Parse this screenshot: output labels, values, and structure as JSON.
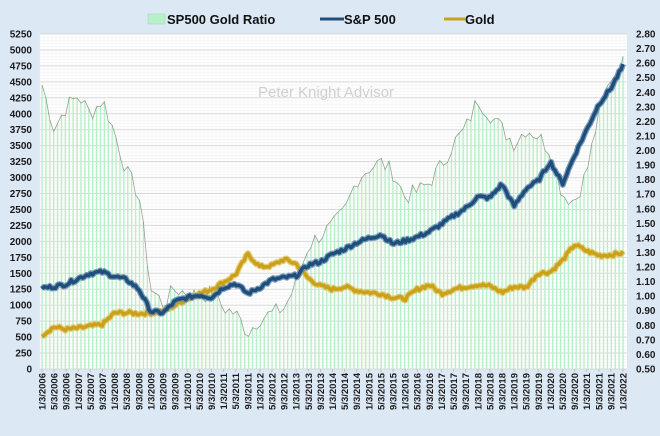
{
  "chart_data": {
    "type": "line",
    "title": "",
    "watermark": "Peter Knight Advisor",
    "legend": {
      "placement": "top",
      "entries": [
        {
          "name": "SP500 Gold Ratio",
          "symbol": "column"
        },
        {
          "name": "S&P 500",
          "symbol": "line"
        },
        {
          "name": "Gold",
          "symbol": "line"
        }
      ]
    },
    "colors": {
      "background": "#dde8f5",
      "plot_background": "#ffffff",
      "ratio_fill": "#b8f0c8",
      "ratio_line": "#6b7f6b",
      "sp500": "#1f4e79",
      "sp500_glow": "#5b84b1",
      "gold": "#c9a21a",
      "gold_glow": "#e2c25a",
      "grid_major": "#d9d9d9",
      "grid_minor": "#efefef"
    },
    "left_axis": {
      "label": "",
      "ylim": [
        0,
        5250
      ],
      "ticks": [
        "0",
        "250",
        "500",
        "750",
        "1000",
        "1250",
        "1500",
        "1750",
        "2000",
        "2250",
        "2500",
        "2750",
        "3000",
        "3250",
        "3500",
        "3750",
        "4000",
        "4250",
        "4500",
        "4750",
        "5000",
        "5250"
      ],
      "series": [
        "S&P 500",
        "Gold"
      ]
    },
    "right_axis": {
      "label": "",
      "ylim": [
        0.5,
        2.8
      ],
      "ticks": [
        "0.50",
        "0.60",
        "0.70",
        "0.80",
        "0.90",
        "1.00",
        "1.10",
        "1.20",
        "1.30",
        "1.40",
        "1.50",
        "1.60",
        "1.70",
        "1.80",
        "1.90",
        "2.00",
        "2.10",
        "2.20",
        "2.30",
        "2.40",
        "2.50",
        "2.60",
        "2.70",
        "2.80"
      ],
      "series": [
        "SP500 Gold Ratio"
      ]
    },
    "x_ticks": [
      "1/3/2006",
      "5/3/2006",
      "9/3/2006",
      "1/3/2007",
      "5/3/2007",
      "9/3/2007",
      "1/3/2008",
      "5/3/2008",
      "9/3/2008",
      "1/3/2009",
      "5/3/2009",
      "9/3/2009",
      "1/3/2010",
      "5/3/2010",
      "9/3/2010",
      "1/3/2011",
      "5/3/2011",
      "9/3/2011",
      "1/3/2012",
      "5/3/2012",
      "9/3/2012",
      "1/3/2013",
      "5/3/2013",
      "9/3/2013",
      "1/3/2014",
      "5/3/2014",
      "9/3/2014",
      "1/3/2015",
      "5/3/2015",
      "9/3/2015",
      "1/3/2016",
      "5/3/2016",
      "9/3/2016",
      "1/3/2017",
      "5/3/2017",
      "9/3/2017",
      "1/3/2018",
      "5/3/2018",
      "9/3/2018",
      "1/3/2019",
      "5/3/2019",
      "9/3/2019",
      "1/3/2020",
      "5/3/2020",
      "9/3/2020",
      "1/3/2021",
      "5/3/2021",
      "9/3/2021",
      "1/3/2022"
    ],
    "series": [
      {
        "name": "SP500 Gold Ratio",
        "axis": "right",
        "type": "column+line",
        "values": [
          2.45,
          2.15,
          2.3,
          2.38,
          2.25,
          2.35,
          2.12,
          1.85,
          1.7,
          1.05,
          0.95,
          1.05,
          1.02,
          1.0,
          1.02,
          0.92,
          0.88,
          0.75,
          0.85,
          0.88,
          0.92,
          1.08,
          1.35,
          1.42,
          1.48,
          1.58,
          1.8,
          1.88,
          1.92,
          1.85,
          1.68,
          1.72,
          1.78,
          1.9,
          2.05,
          2.15,
          2.35,
          2.25,
          2.15,
          2.05,
          2.15,
          2.1,
          2.0,
          1.7,
          1.65,
          1.85,
          2.25,
          2.5,
          2.6
        ]
      },
      {
        "name": "S&P 500",
        "axis": "left",
        "type": "line",
        "values": [
          1270,
          1290,
          1330,
          1420,
          1500,
          1520,
          1450,
          1400,
          1250,
          900,
          880,
          1060,
          1120,
          1160,
          1120,
          1280,
          1340,
          1180,
          1280,
          1400,
          1430,
          1460,
          1630,
          1680,
          1800,
          1880,
          1980,
          2050,
          2110,
          1960,
          2010,
          2070,
          2150,
          2270,
          2400,
          2520,
          2700,
          2680,
          2900,
          2550,
          2830,
          2950,
          3250,
          2900,
          3350,
          3750,
          4150,
          4400,
          4750
        ]
      },
      {
        "name": "Gold",
        "axis": "left",
        "type": "line",
        "values": [
          530,
          660,
          620,
          640,
          670,
          700,
          880,
          880,
          870,
          880,
          900,
          1000,
          1100,
          1180,
          1250,
          1360,
          1480,
          1800,
          1600,
          1620,
          1720,
          1650,
          1420,
          1300,
          1250,
          1290,
          1230,
          1200,
          1180,
          1120,
          1100,
          1250,
          1320,
          1180,
          1250,
          1290,
          1320,
          1300,
          1200,
          1290,
          1280,
          1500,
          1520,
          1700,
          1950,
          1850,
          1780,
          1790,
          1820
        ]
      }
    ]
  }
}
